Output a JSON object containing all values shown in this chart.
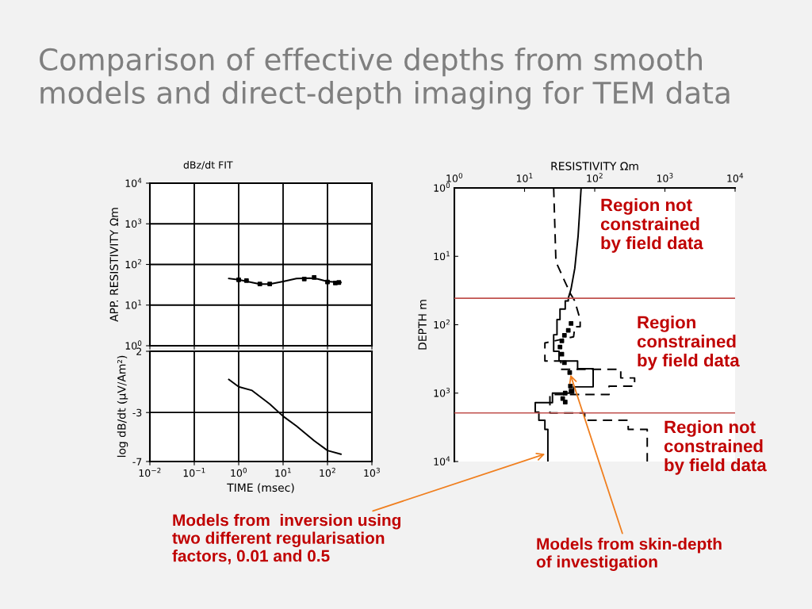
{
  "chart_data": [
    {
      "type": "line",
      "title": "Comparison of effective depths from smooth models and direct-depth imaging for TEM data",
      "subtitle": "dBz/dt FIT",
      "ylabel": "APP. RESISTIVITY Ωm",
      "log": "xy",
      "grid": true,
      "tick_labels": "y",
      "xlim": [
        0.01,
        1000
      ],
      "ylim": [
        1,
        10000
      ],
      "xticks": [
        {
          "value": 0.01,
          "label": null
        },
        {
          "value": 0.1,
          "label": null
        },
        {
          "value": 1,
          "label": null
        },
        {
          "value": 10,
          "label": null
        },
        {
          "value": 100,
          "label": null
        },
        {
          "value": 1000,
          "label": null
        }
      ],
      "yticks": [
        {
          "value": 1,
          "label": "10$^{0}$"
        },
        {
          "value": 10,
          "label": "10$^{1}$"
        },
        {
          "value": 100,
          "label": "10$^{2}$"
        },
        {
          "value": 1000,
          "label": "10$^{3}$"
        },
        {
          "value": 10000,
          "label": "10$^{4}$"
        }
      ],
      "series": [
        {
          "color": "#000000",
          "x": [
            0.6,
            1,
            2,
            3,
            5,
            10,
            20,
            40,
            60,
            100,
            200
          ],
          "values": [
            45,
            42,
            36,
            33,
            33,
            38,
            45,
            46,
            44,
            38,
            36
          ]
        },
        {
          "type": "scatter",
          "marker": "square",
          "color": "#000000",
          "x": [
            1,
            1.5,
            3,
            5,
            30,
            50,
            100,
            150,
            180
          ],
          "values": [
            42,
            40,
            33,
            33,
            44,
            48,
            37,
            35,
            36
          ]
        }
      ]
    },
    {
      "type": "line",
      "xlabel": "TIME (msec)",
      "ylabel": "log dB/dt (μV/Am²)",
      "log": "x",
      "grid": true,
      "xlim": [
        0.01,
        1000
      ],
      "ylim": [
        -7,
        2
      ],
      "xticks": [
        {
          "value": 0.01,
          "label": "10$^{−2}$"
        },
        {
          "value": 0.1,
          "label": "10$^{−1}$"
        },
        {
          "value": 1,
          "label": "10$^{0}$"
        },
        {
          "value": 10,
          "label": "10$^{1}$"
        },
        {
          "value": 100,
          "label": "10$^{2}$"
        },
        {
          "value": 1000,
          "label": "10$^{3}$"
        }
      ],
      "yticks": [
        2,
        -3,
        -7
      ],
      "series": [
        {
          "color": "#000000",
          "x": [
            0.6,
            1,
            2,
            5,
            10,
            20,
            50,
            100,
            200
          ],
          "values": [
            -0.3,
            -0.9,
            -1.2,
            -2.3,
            -3.3,
            -4.1,
            -5.3,
            -6.1,
            -6.4
          ]
        }
      ]
    },
    {
      "type": "line",
      "xlabel": "RESISTIVITY Ωm",
      "ylabel": "DEPTH m",
      "log": "xy",
      "grid": false,
      "xlim": [
        1,
        10000
      ],
      "ylim": [
        10000,
        1
      ],
      "xticks": [
        {
          "value": 1,
          "label": "10$^{0}$"
        },
        {
          "value": 10,
          "label": "10$^{1}$"
        },
        {
          "value": 100,
          "label": "10$^{2}$"
        },
        {
          "value": 1000,
          "label": "10$^{3}$"
        },
        {
          "value": 10000,
          "label": "10$^{4}$"
        }
      ],
      "yticks": [
        {
          "value": 1,
          "label": "10$^{0}$"
        },
        {
          "value": 10,
          "label": "10$^{1}$"
        },
        {
          "value": 100,
          "label": "10$^{2}$"
        },
        {
          "value": 1000,
          "label": "10$^{3}$"
        },
        {
          "value": 10000,
          "label": "10$^{4}$"
        }
      ],
      "ref_lines": [
        {
          "axis": "y",
          "value": 41,
          "color": "#c0504d"
        },
        {
          "axis": "y",
          "value": 1950,
          "color": "#c0504d"
        }
      ],
      "series": [
        {
          "line_style": "solid",
          "color": "#000000",
          "x": [
            64,
            58,
            52,
            46,
            42,
            42,
            38,
            38,
            32,
            32,
            29,
            29,
            26,
            26,
            31,
            31,
            57,
            57,
            95,
            95,
            50,
            50,
            25,
            25,
            14.2,
            14.2,
            16,
            16,
            19.5,
            19.5,
            21.5,
            21.5
          ],
          "values": [
            1,
            5,
            15,
            30,
            41,
            45,
            45,
            59,
            59,
            84,
            84,
            140,
            140,
            245,
            245,
            340,
            340,
            440,
            440,
            810,
            810,
            1000,
            1000,
            1380,
            1380,
            1900,
            1900,
            2500,
            2500,
            3400,
            3400,
            10000
          ]
        },
        {
          "line_style": "dashed",
          "color": "#000000",
          "x": [
            26,
            28,
            38,
            45,
            52,
            62,
            62,
            52,
            50,
            19.5,
            19.5,
            33,
            33,
            100,
            235,
            235,
            370,
            370,
            160,
            160,
            23,
            23,
            72,
            72,
            300,
            300,
            560,
            560
          ],
          "values": [
            1,
            12,
            24,
            35,
            45,
            84,
            107,
            107,
            150,
            185,
            340,
            340,
            450,
            450,
            450,
            600,
            600,
            790,
            790,
            1050,
            1050,
            1950,
            1950,
            2500,
            2500,
            3400,
            3400,
            10000
          ]
        },
        {
          "type": "scatter",
          "marker": "square",
          "color": "#000000",
          "x": [
            46,
            42,
            37,
            34,
            32,
            34,
            37,
            44,
            45,
            46,
            38,
            35,
            38
          ],
          "values": [
            96,
            121,
            143,
            172,
            212,
            270,
            360,
            500,
            790,
            930,
            1000,
            1200,
            1350
          ]
        }
      ],
      "annotations": [
        "Region not\nconstrained\nby field data",
        "Region\nconstrained\nby field data",
        "Region not\nconstrained\nby field data",
        {
          "text": "Models from  inversion using\ntwo different regularisation\nfactors, 0.01 and 0.5",
          "x": 21,
          "y": 7600
        },
        {
          "text": "Models from skin-depth\nof investigation",
          "x": 44,
          "y": 500
        }
      ]
    }
  ]
}
